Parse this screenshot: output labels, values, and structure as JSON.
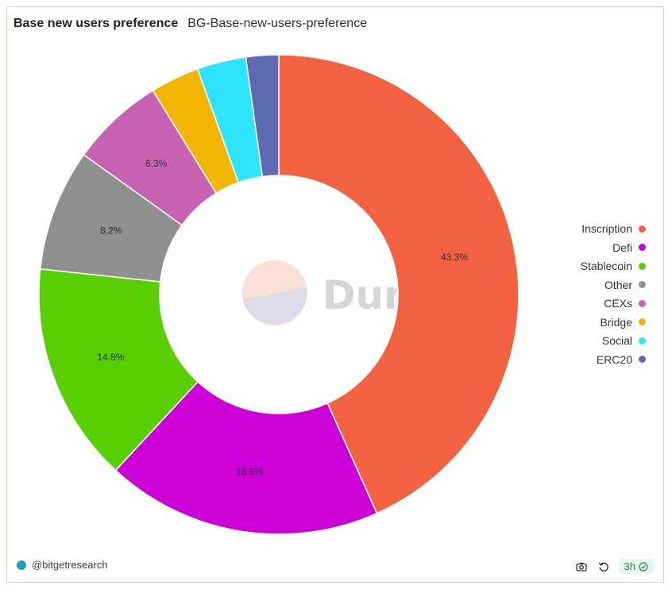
{
  "header": {
    "title": "Base new users preference",
    "subtitle": "BG-Base-new-users-preference"
  },
  "watermark": {
    "text": "Dune"
  },
  "footer": {
    "author": "@bitgetresearch",
    "refresh_label": "3h"
  },
  "colors": {
    "Inscription": "#f26241",
    "Defi": "#cc00d6",
    "Stablecoin": "#57cf02",
    "Other": "#8f8f8f",
    "CEXs": "#c862b3",
    "Bridge": "#f2b705",
    "Social": "#2ee4fa",
    "ERC20": "#5d6bb5"
  },
  "chart_data": {
    "type": "pie",
    "donut": true,
    "title": "Base new users preference",
    "legend": "right",
    "slices": [
      {
        "label": "Inscription",
        "value": 43.3,
        "show_label": "43.3%"
      },
      {
        "label": "Defi",
        "value": 18.6,
        "show_label": "18.6%"
      },
      {
        "label": "Stablecoin",
        "value": 14.8,
        "show_label": "14.8%"
      },
      {
        "label": "Other",
        "value": 8.2,
        "show_label": "8.2%"
      },
      {
        "label": "CEXs",
        "value": 6.3,
        "show_label": "6.3%"
      },
      {
        "label": "Bridge",
        "value": 3.3,
        "show_label": ""
      },
      {
        "label": "Social",
        "value": 3.3,
        "show_label": ""
      },
      {
        "label": "ERC20",
        "value": 2.2,
        "show_label": ""
      }
    ]
  }
}
